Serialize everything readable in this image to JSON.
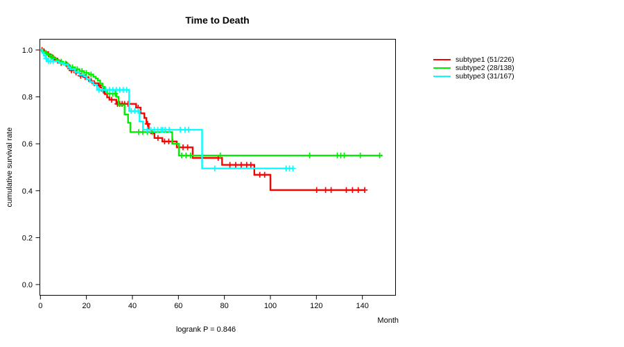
{
  "title": "Time to Death",
  "caption": "logrank P = 0.846",
  "axes": {
    "xlabel": "Month",
    "ylabel": "cumulative survival rate"
  },
  "chart_data": {
    "type": "line",
    "variant": "kaplan-meier-step",
    "title": "Time to Death",
    "xlabel": "Month",
    "ylabel": "cumulative survival rate",
    "caption": "logrank P = 0.846",
    "xlim": [
      0,
      154
    ],
    "ylim": [
      0,
      1.04
    ],
    "x_ticks": [
      0,
      20,
      40,
      60,
      80,
      100,
      120,
      140
    ],
    "y_ticks": [
      0.0,
      0.2,
      0.4,
      0.6,
      0.8,
      1.0
    ],
    "grid": false,
    "legend_position": "right-outside",
    "series": [
      {
        "name": "subtype1 (51/226)",
        "color": "#ff0000",
        "end": 141.2,
        "steps": [
          [
            0,
            1.0
          ],
          [
            1,
            0.995
          ],
          [
            2,
            0.99
          ],
          [
            3,
            0.982
          ],
          [
            4,
            0.973
          ],
          [
            5,
            0.968
          ],
          [
            6,
            0.959
          ],
          [
            7,
            0.954
          ],
          [
            8,
            0.945
          ],
          [
            10,
            0.938
          ],
          [
            12,
            0.922
          ],
          [
            13,
            0.913
          ],
          [
            15,
            0.904
          ],
          [
            17,
            0.89
          ],
          [
            19,
            0.884
          ],
          [
            20,
            0.876
          ],
          [
            22,
            0.867
          ],
          [
            23,
            0.858
          ],
          [
            25,
            0.849
          ],
          [
            26,
            0.84
          ],
          [
            27,
            0.826
          ],
          [
            28,
            0.812
          ],
          [
            29,
            0.798
          ],
          [
            30,
            0.788
          ],
          [
            33,
            0.77
          ],
          [
            41.6,
            0.754
          ],
          [
            43.6,
            0.73
          ],
          [
            45.2,
            0.71
          ],
          [
            46.1,
            0.685
          ],
          [
            47.1,
            0.66
          ],
          [
            48.1,
            0.645
          ],
          [
            49.6,
            0.625
          ],
          [
            53,
            0.61
          ],
          [
            59.3,
            0.585
          ],
          [
            66.2,
            0.54
          ],
          [
            79,
            0.51
          ],
          [
            93,
            0.468
          ],
          [
            100,
            0.403
          ]
        ],
        "censors": [
          0.7,
          1.5,
          3.5,
          5.5,
          7.5,
          9,
          11.5,
          13.5,
          15.5,
          17.5,
          19.5,
          21,
          23.5,
          25.5,
          27.5,
          31,
          33.5,
          34.5,
          35.5,
          36.6,
          38.1,
          42.5,
          46.6,
          51.1,
          54,
          55.8,
          57.5,
          62,
          64,
          77.3,
          82.4,
          84.9,
          87.3,
          89.7,
          91.5,
          95.4,
          97.5,
          120.1,
          124,
          126.4,
          133,
          135.7,
          138.2,
          141
        ]
      },
      {
        "name": "subtype2 (28/138)",
        "color": "#00ee00",
        "end": 148.7,
        "steps": [
          [
            0,
            1.0
          ],
          [
            1,
            0.993
          ],
          [
            2,
            0.986
          ],
          [
            3,
            0.979
          ],
          [
            4,
            0.971
          ],
          [
            6,
            0.964
          ],
          [
            7,
            0.957
          ],
          [
            8,
            0.95
          ],
          [
            10,
            0.942
          ],
          [
            12,
            0.934
          ],
          [
            13,
            0.926
          ],
          [
            15,
            0.918
          ],
          [
            17,
            0.91
          ],
          [
            19,
            0.902
          ],
          [
            21,
            0.895
          ],
          [
            23,
            0.886
          ],
          [
            24,
            0.878
          ],
          [
            25,
            0.87
          ],
          [
            26,
            0.857
          ],
          [
            27,
            0.843
          ],
          [
            28,
            0.828
          ],
          [
            29,
            0.814
          ],
          [
            33,
            0.8
          ],
          [
            34,
            0.765
          ],
          [
            36.6,
            0.725
          ],
          [
            38.1,
            0.69
          ],
          [
            39.1,
            0.65
          ],
          [
            57.3,
            0.6
          ],
          [
            60.2,
            0.55
          ]
        ],
        "censors": [
          2.5,
          5,
          9,
          11,
          14,
          16,
          18,
          20,
          22,
          30,
          31.5,
          32.5,
          42.7,
          44.5,
          46.5,
          48.7,
          61.4,
          63.3,
          65.3,
          78.2,
          117.1,
          129.1,
          130.6,
          132.1,
          139.1,
          147.5
        ]
      },
      {
        "name": "subtype3 (31/167)",
        "color": "#00ffff",
        "end": 109.8,
        "steps": [
          [
            0,
            1.0
          ],
          [
            0.8,
            0.988
          ],
          [
            1.5,
            0.976
          ],
          [
            2.2,
            0.964
          ],
          [
            3,
            0.952
          ],
          [
            8,
            0.945
          ],
          [
            10,
            0.938
          ],
          [
            12,
            0.925
          ],
          [
            13,
            0.918
          ],
          [
            15,
            0.906
          ],
          [
            17,
            0.894
          ],
          [
            19,
            0.888
          ],
          [
            20,
            0.876
          ],
          [
            21.5,
            0.864
          ],
          [
            23,
            0.852
          ],
          [
            24.6,
            0.83
          ],
          [
            38.6,
            0.74
          ],
          [
            43.1,
            0.695
          ],
          [
            44.6,
            0.66
          ],
          [
            70.3,
            0.495
          ]
        ],
        "censors": [
          2.5,
          3.5,
          4.5,
          5.5,
          25.5,
          27,
          28.5,
          30,
          31.5,
          33,
          34.5,
          36,
          37.5,
          39.5,
          41,
          42.5,
          46.5,
          48,
          49.5,
          51,
          52.5,
          53.2,
          54.2,
          56,
          60.8,
          62.9,
          64.4,
          75.8,
          106.8,
          108.3,
          109.8
        ]
      }
    ]
  },
  "legend": {
    "items": [
      {
        "label": "subtype1 (51/226)",
        "color": "#ff0000"
      },
      {
        "label": "subtype2 (28/138)",
        "color": "#00ee00"
      },
      {
        "label": "subtype3 (31/167)",
        "color": "#00ffff"
      }
    ]
  }
}
